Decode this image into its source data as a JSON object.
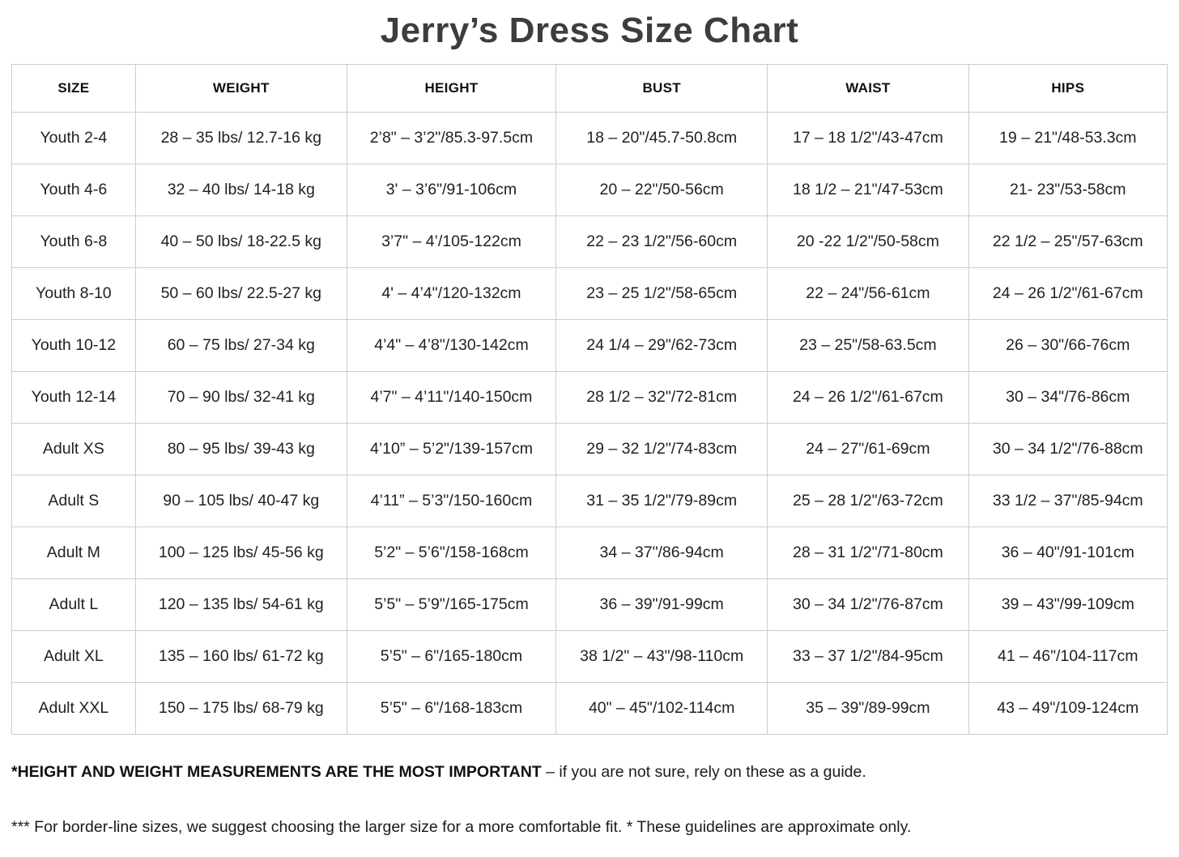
{
  "title": "Jerry’s Dress Size Chart",
  "table": {
    "headers": [
      "SIZE",
      "WEIGHT",
      "HEIGHT",
      "BUST",
      "WAIST",
      "HIPS"
    ],
    "rows": [
      [
        "Youth 2-4",
        "28 – 35 lbs/ 12.7-16 kg",
        "2’8\" – 3’2\"/85.3-97.5cm",
        "18 – 20\"/45.7-50.8cm",
        "17 – 18 1/2\"/43-47cm",
        "19 – 21\"/48-53.3cm"
      ],
      [
        "Youth 4-6",
        "32 – 40 lbs/ 14-18 kg",
        "3' – 3’6\"/91-106cm",
        "20 – 22\"/50-56cm",
        "18 1/2 – 21\"/47-53cm",
        "21- 23\"/53-58cm"
      ],
      [
        "Youth 6-8",
        "40 – 50 lbs/ 18-22.5 kg",
        "3’7\" – 4’/105-122cm",
        "22 – 23 1/2\"/56-60cm",
        "20 -22 1/2\"/50-58cm",
        "22 1/2 – 25\"/57-63cm"
      ],
      [
        "Youth 8-10",
        "50 – 60 lbs/ 22.5-27 kg",
        "4' – 4’4\"/120-132cm",
        "23 – 25 1/2\"/58-65cm",
        "22 – 24\"/56-61cm",
        "24 – 26 1/2\"/61-67cm"
      ],
      [
        "Youth 10-12",
        "60 – 75 lbs/ 27-34 kg",
        "4’4\" – 4’8\"/130-142cm",
        "24 1/4 – 29\"/62-73cm",
        "23 – 25\"/58-63.5cm",
        "26 – 30\"/66-76cm"
      ],
      [
        "Youth 12-14",
        "70 – 90 lbs/ 32-41 kg",
        "4’7\" – 4’11\"/140-150cm",
        "28 1/2 – 32\"/72-81cm",
        "24 – 26 1/2\"/61-67cm",
        "30 – 34\"/76-86cm"
      ],
      [
        "Adult XS",
        "80 – 95 lbs/ 39-43 kg",
        "4’10” – 5’2\"/139-157cm",
        "29 – 32 1/2\"/74-83cm",
        "24 – 27\"/61-69cm",
        "30 – 34 1/2\"/76-88cm"
      ],
      [
        "Adult S",
        "90 – 105 lbs/ 40-47 kg",
        "4’11” – 5’3\"/150-160cm",
        "31 – 35 1/2\"/79-89cm",
        "25 – 28 1/2\"/63-72cm",
        "33 1/2 – 37\"/85-94cm"
      ],
      [
        "Adult M",
        "100 – 125 lbs/ 45-56 kg",
        "5’2\" – 5’6\"/158-168cm",
        "34 – 37\"/86-94cm",
        "28 – 31 1/2\"/71-80cm",
        "36 – 40\"/91-101cm"
      ],
      [
        "Adult L",
        "120 – 135 lbs/ 54-61 kg",
        "5’5\" – 5’9\"/165-175cm",
        "36 – 39\"/91-99cm",
        "30 – 34 1/2\"/76-87cm",
        "39 – 43\"/99-109cm"
      ],
      [
        "Adult XL",
        "135 – 160 lbs/ 61-72 kg",
        "5’5\" – 6\"/165-180cm",
        "38 1/2\" – 43\"/98-110cm",
        "33 – 37 1/2\"/84-95cm",
        "41 – 46\"/104-117cm"
      ],
      [
        "Adult XXL",
        "150 – 175 lbs/ 68-79 kg",
        "5’5\" – 6\"/168-183cm",
        "40\" – 45\"/102-114cm",
        "35 – 39\"/89-99cm",
        "43 – 49\"/109-124cm"
      ]
    ]
  },
  "footnotes": {
    "line1_bold": "*HEIGHT AND WEIGHT MEASUREMENTS ARE THE MOST IMPORTANT",
    "line1_rest": " – if you are not sure, rely on these as a guide.",
    "line2": "*** For border-line sizes, we suggest choosing the larger size for a more comfortable fit. * These guidelines are approximate only."
  },
  "colors": {
    "title_text": "#3d3d3d",
    "body_text": "#202124",
    "grid_border": "#cccccc",
    "background": "#ffffff"
  }
}
